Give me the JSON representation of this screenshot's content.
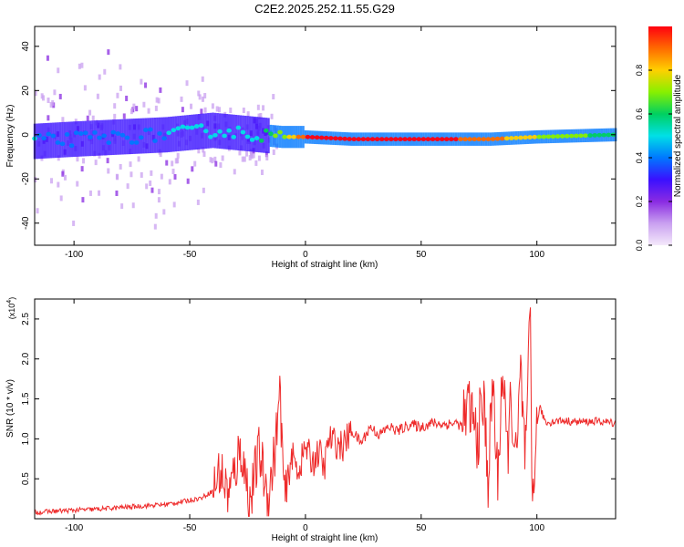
{
  "title": "C2E2.2025.252.11.55.G29",
  "colors": {
    "snr_line": "#ee2a2a",
    "colormap": [
      "#f4e9fb",
      "#c9a0f0",
      "#8a2be2",
      "#3a10ff",
      "#0078ff",
      "#00e0e6",
      "#00d060",
      "#88f000",
      "#ffd000",
      "#ff6a00",
      "#ff0010"
    ]
  },
  "chart_data": [
    {
      "type": "heatmap",
      "xlabel": "Height of straight line (km)",
      "ylabel": "Frequency (Hz)",
      "xlim": [
        -117,
        134
      ],
      "ylim": [
        -50,
        49
      ],
      "xticks": [
        -100,
        -50,
        0,
        50,
        100
      ],
      "yticks": [
        -40,
        -20,
        0,
        20,
        40
      ],
      "colorbar": {
        "label": "Normalized spectral amplitude",
        "range": [
          0,
          1
        ],
        "ticks": [
          "0.0",
          "0.2",
          "0.4",
          "0.6",
          "0.8"
        ]
      },
      "ridge": {
        "description_values": "dominant frequency (Hz) vs height (km)",
        "x": [
          -117,
          -100,
          -80,
          -60,
          -40,
          -20,
          -10,
          0,
          20,
          50,
          80,
          100,
          134
        ],
        "y": [
          -3,
          -2,
          -1,
          0,
          2,
          0,
          -1,
          -1,
          -2,
          -2,
          -2,
          -1,
          0
        ],
        "peak_amplitude": [
          0.45,
          0.4,
          0.4,
          0.45,
          0.5,
          0.55,
          0.7,
          0.95,
          1.0,
          1.0,
          0.9,
          0.75,
          0.6
        ]
      }
    },
    {
      "type": "line",
      "xlabel": "Height of straight line (km)",
      "ylabel": "SNR (10 * v/v)",
      "scale_label": "(x10",
      "scale_exponent": "4",
      "xlim": [
        -117,
        134
      ],
      "ylim": [
        0,
        27500
      ],
      "xticks": [
        -100,
        -50,
        0,
        50,
        100
      ],
      "yticks": [
        5000,
        10000,
        15000,
        20000,
        25000
      ],
      "ytick_labels": [
        "0.5",
        "1.0",
        "1.5",
        "2.0",
        "2.5"
      ],
      "series": [
        {
          "x": [
            -117,
            -105,
            -90,
            -75,
            -60,
            -52,
            -45,
            -40,
            -37,
            -33,
            -28,
            -24,
            -20,
            -16,
            -13,
            -11,
            -9,
            -6,
            -3,
            0,
            3,
            6,
            8,
            10,
            13,
            16,
            20,
            24,
            28,
            32,
            36,
            40,
            45,
            50,
            55,
            60,
            65,
            68,
            71,
            74,
            77,
            79,
            81,
            83,
            85,
            87,
            89,
            91,
            93,
            95,
            96,
            97,
            98,
            99,
            101,
            104,
            110,
            118,
            126,
            134
          ],
          "y": [
            800,
            1000,
            1200,
            1500,
            1800,
            2200,
            2600,
            3500,
            6000,
            3000,
            9000,
            2000,
            8500,
            2500,
            9000,
            15800,
            2000,
            8000,
            6000,
            9000,
            7000,
            8500,
            6000,
            10000,
            9500,
            9000,
            11000,
            9500,
            11500,
            10500,
            11500,
            11000,
            11800,
            11500,
            12000,
            11800,
            12000,
            11500,
            14000,
            10000,
            14500,
            5000,
            17500,
            4000,
            19000,
            8000,
            15000,
            6000,
            18000,
            7000,
            12500,
            27500,
            1200,
            8000,
            14000,
            12000,
            12300,
            12100,
            12200,
            12000
          ]
        }
      ]
    }
  ]
}
